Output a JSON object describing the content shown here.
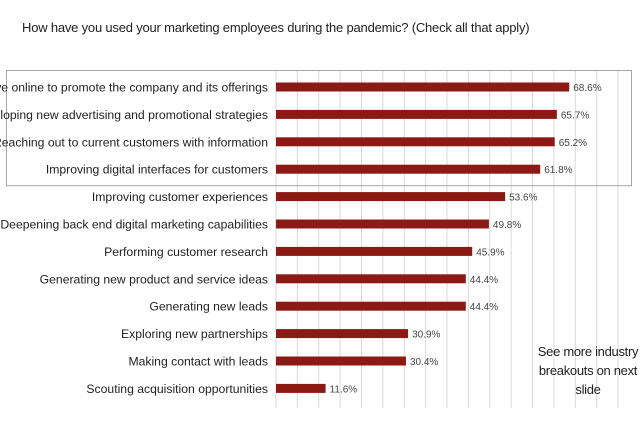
{
  "title": "How have you used your marketing employees during the pandemic? (Check all that apply)",
  "note": "See more industry breakouts on next slide",
  "colors": {
    "bar": "#8b1a14",
    "grid": "#d9d9d9",
    "highlight_box": "#a6a6a6",
    "text": "#222222"
  },
  "chart_data": {
    "type": "bar",
    "orientation": "horizontal",
    "title": "How have you used your marketing employees during the pandemic? (Check all that apply)",
    "categories": [
      "Getting active online to promote the company and its offerings",
      "Developing new advertising and promotional strategies",
      "Reaching out to current customers with information",
      "Improving digital interfaces for customers",
      "Improving customer experiences",
      "Deepening back end digital marketing capabilities",
      "Performing customer research",
      "Generating new product and service ideas",
      "Generating new leads",
      "Exploring new partnerships",
      "Making contact with leads",
      "Scouting acquisition opportunities"
    ],
    "values": [
      68.6,
      65.7,
      65.2,
      61.8,
      53.6,
      49.8,
      45.9,
      44.4,
      44.4,
      30.9,
      30.4,
      11.6
    ],
    "data_labels": [
      "68.6%",
      "65.7%",
      "65.2%",
      "61.8%",
      "53.6%",
      "49.8%",
      "45.9%",
      "44.4%",
      "44.4%",
      "30.9%",
      "30.4%",
      "11.6%"
    ],
    "highlighted_top": 4,
    "xlim": [
      0,
      80
    ],
    "grid": true,
    "xlabel": "",
    "ylabel": ""
  }
}
